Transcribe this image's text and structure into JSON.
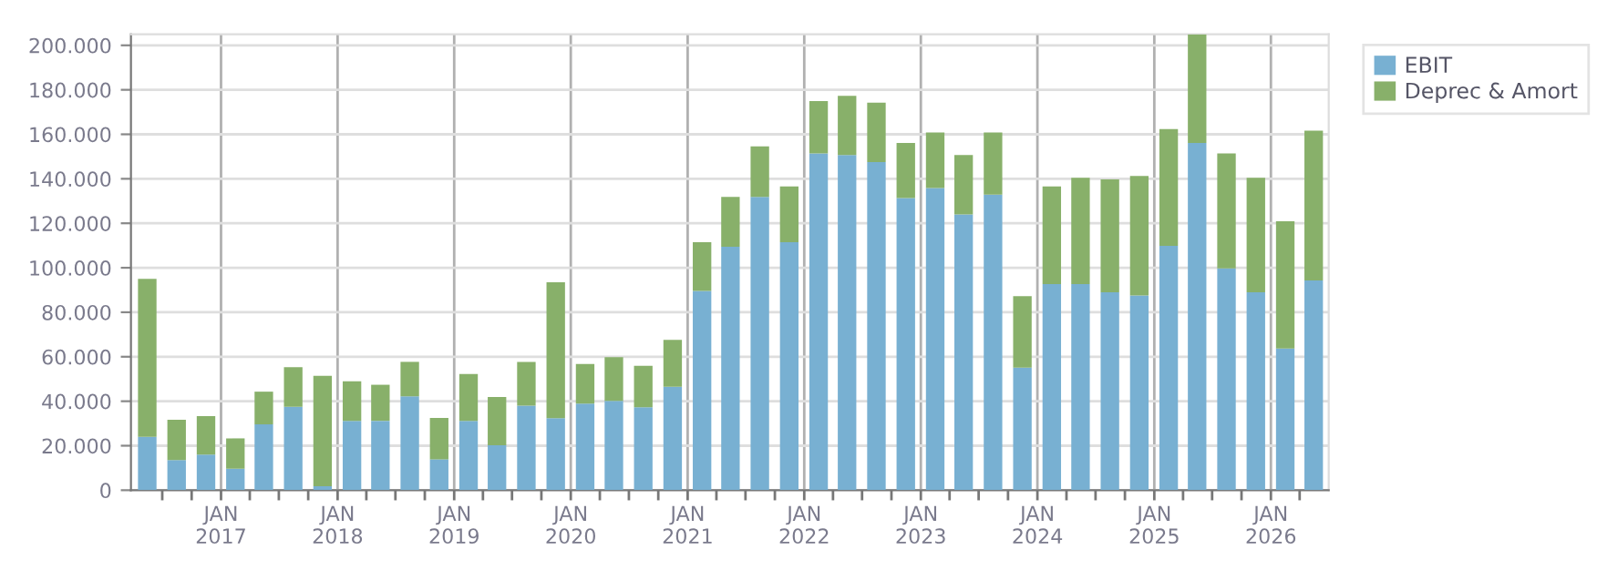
{
  "chart_data": {
    "type": "bar",
    "stacked": true,
    "x": [
      "2016-05-15",
      "2016-08-15",
      "2016-11-15",
      "2017-02-15",
      "2017-05-15",
      "2017-08-15",
      "2017-11-15",
      "2018-02-15",
      "2018-05-15",
      "2018-08-15",
      "2018-11-15",
      "2019-02-15",
      "2019-05-15",
      "2019-08-15",
      "2019-11-15",
      "2020-02-15",
      "2020-05-15",
      "2020-08-15",
      "2020-11-15",
      "2021-02-15",
      "2021-05-15",
      "2021-08-15",
      "2021-11-15",
      "2022-02-15",
      "2022-05-15",
      "2022-08-15",
      "2022-11-15",
      "2023-02-15",
      "2023-05-15",
      "2023-08-15",
      "2023-11-15",
      "2024-02-15",
      "2024-05-15",
      "2024-08-15",
      "2024-11-15",
      "2025-02-15",
      "2025-05-15",
      "2025-08-15",
      "2025-11-15",
      "2026-02-15",
      "2026-05-15"
    ],
    "series": [
      {
        "name": "EBIT",
        "color": "#78b0d2",
        "values": [
          24000,
          13600,
          16000,
          9700,
          29600,
          37500,
          1800,
          31200,
          31200,
          42200,
          13900,
          31200,
          20200,
          38000,
          32400,
          38900,
          40200,
          37300,
          46500,
          89600,
          109400,
          131900,
          111500,
          151400,
          150700,
          147500,
          131300,
          135800,
          124000,
          132900,
          55100,
          92700,
          92700,
          89000,
          87500,
          109900,
          156100,
          99700,
          89000,
          63700,
          94300
        ]
      },
      {
        "name": "Deprec & Amort",
        "color": "#88b06a",
        "values": [
          71000,
          18100,
          17300,
          13600,
          14700,
          17800,
          49600,
          17800,
          16200,
          15500,
          18600,
          21000,
          21700,
          19700,
          61100,
          17800,
          19600,
          18600,
          21100,
          21900,
          22500,
          22700,
          25100,
          23500,
          26600,
          26700,
          24800,
          25000,
          26700,
          27900,
          32100,
          43900,
          47800,
          50700,
          53800,
          52500,
          48800,
          51700,
          51500,
          57200,
          67300
        ]
      }
    ],
    "xlim": [
      "2016-03-25",
      "2026-07-01"
    ],
    "xticks": [
      {
        "value": "2016-07-01",
        "label": null
      },
      {
        "value": "2016-10-01",
        "label": null
      },
      {
        "value": "2017-01-01",
        "label": "JAN\n2017"
      },
      {
        "value": "2017-04-01",
        "label": null
      },
      {
        "value": "2017-07-01",
        "label": null
      },
      {
        "value": "2017-10-01",
        "label": null
      },
      {
        "value": "2018-01-01",
        "label": "JAN\n2018"
      },
      {
        "value": "2018-04-01",
        "label": null
      },
      {
        "value": "2018-07-01",
        "label": null
      },
      {
        "value": "2018-10-01",
        "label": null
      },
      {
        "value": "2019-01-01",
        "label": "JAN\n2019"
      },
      {
        "value": "2019-04-01",
        "label": null
      },
      {
        "value": "2019-07-01",
        "label": null
      },
      {
        "value": "2019-10-01",
        "label": null
      },
      {
        "value": "2020-01-01",
        "label": "JAN\n2020"
      },
      {
        "value": "2020-04-01",
        "label": null
      },
      {
        "value": "2020-07-01",
        "label": null
      },
      {
        "value": "2020-10-01",
        "label": null
      },
      {
        "value": "2021-01-01",
        "label": "JAN\n2021"
      },
      {
        "value": "2021-04-01",
        "label": null
      },
      {
        "value": "2021-07-01",
        "label": null
      },
      {
        "value": "2021-10-01",
        "label": null
      },
      {
        "value": "2022-01-01",
        "label": "JAN\n2022"
      },
      {
        "value": "2022-04-01",
        "label": null
      },
      {
        "value": "2022-07-01",
        "label": null
      },
      {
        "value": "2022-10-01",
        "label": null
      },
      {
        "value": "2023-01-01",
        "label": "JAN\n2023"
      },
      {
        "value": "2023-04-01",
        "label": null
      },
      {
        "value": "2023-07-01",
        "label": null
      },
      {
        "value": "2023-10-01",
        "label": null
      },
      {
        "value": "2024-01-01",
        "label": "JAN\n2024"
      },
      {
        "value": "2024-04-01",
        "label": null
      },
      {
        "value": "2024-07-01",
        "label": null
      },
      {
        "value": "2024-10-01",
        "label": null
      },
      {
        "value": "2025-01-01",
        "label": "JAN\n2025"
      },
      {
        "value": "2025-04-01",
        "label": null
      },
      {
        "value": "2025-07-01",
        "label": null
      },
      {
        "value": "2025-10-01",
        "label": null
      },
      {
        "value": "2026-01-01",
        "label": "JAN\n2026"
      },
      {
        "value": "2026-04-01",
        "label": null
      }
    ],
    "ylim": [
      0,
      205000
    ],
    "yticks": [
      {
        "value": 0,
        "label": "0"
      },
      {
        "value": 20000,
        "label": "20.000"
      },
      {
        "value": 40000,
        "label": "40.000"
      },
      {
        "value": 60000,
        "label": "60.000"
      },
      {
        "value": 80000,
        "label": "80.000"
      },
      {
        "value": 100000,
        "label": "100.000"
      },
      {
        "value": 120000,
        "label": "120.000"
      },
      {
        "value": 140000,
        "label": "140.000"
      },
      {
        "value": 160000,
        "label": "160.000"
      },
      {
        "value": 180000,
        "label": "180.000"
      },
      {
        "value": 200000,
        "label": "200.000"
      }
    ],
    "grid": true,
    "legend": "top right"
  }
}
